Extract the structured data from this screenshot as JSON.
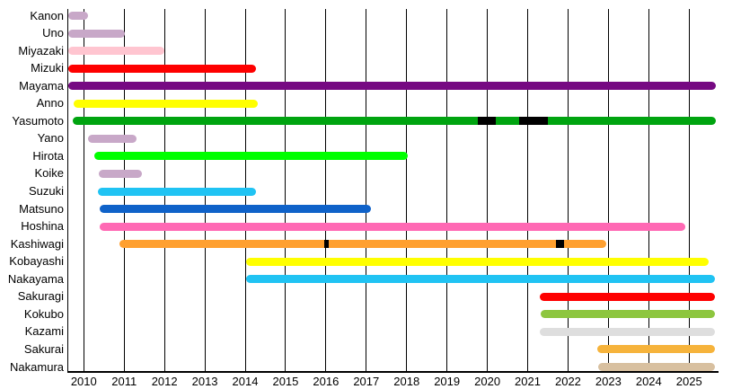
{
  "chart_data": {
    "type": "gantt",
    "title": "",
    "background": "#ffffff",
    "axis_color": "#000000",
    "break_color": "#000000",
    "grid_on": true,
    "x_axis": {
      "min": 2009.6,
      "max": 2025.72,
      "ticks": [
        2010,
        2011,
        2012,
        2013,
        2014,
        2015,
        2016,
        2017,
        2018,
        2019,
        2020,
        2021,
        2022,
        2023,
        2024,
        2025
      ]
    },
    "rows": [
      {
        "label": "Kanon",
        "color": "#c8a8c8",
        "start": 2009.62,
        "end": 2010.1,
        "breaks": []
      },
      {
        "label": "Uno",
        "color": "#c8a8c8",
        "start": 2009.62,
        "end": 2011.02,
        "breaks": []
      },
      {
        "label": "Miyazaki",
        "color": "#ffc5d0",
        "start": 2009.62,
        "end": 2012.0,
        "breaks": []
      },
      {
        "label": "Mizuki",
        "color": "#fe0000",
        "start": 2009.62,
        "end": 2014.27,
        "breaks": []
      },
      {
        "label": "Mayama",
        "color": "#760982",
        "start": 2009.62,
        "end": 2025.66,
        "breaks": []
      },
      {
        "label": "Anno",
        "color": "#ffff00",
        "start": 2009.74,
        "end": 2014.32,
        "breaks": []
      },
      {
        "label": "Yasumoto",
        "color": "#00a410",
        "start": 2009.73,
        "end": 2025.66,
        "breaks": [
          [
            2019.76,
            2020.2
          ],
          [
            2020.79,
            2021.5
          ]
        ]
      },
      {
        "label": "Yano",
        "color": "#c8a8c8",
        "start": 2010.11,
        "end": 2011.3,
        "breaks": []
      },
      {
        "label": "Hirota",
        "color": "#00ff00",
        "start": 2010.25,
        "end": 2018.03,
        "breaks": []
      },
      {
        "label": "Koike",
        "color": "#c8a8c8",
        "start": 2010.37,
        "end": 2011.45,
        "breaks": []
      },
      {
        "label": "Suzuki",
        "color": "#20c3f3",
        "start": 2010.36,
        "end": 2014.27,
        "breaks": []
      },
      {
        "label": "Matsuno",
        "color": "#0f62c9",
        "start": 2010.39,
        "end": 2017.11,
        "breaks": []
      },
      {
        "label": "Hoshina",
        "color": "#ff69b4",
        "start": 2010.39,
        "end": 2024.9,
        "breaks": []
      },
      {
        "label": "Kashiwagi",
        "color": "#ffa030",
        "start": 2010.89,
        "end": 2022.95,
        "breaks": [
          [
            2015.96,
            2016.06
          ],
          [
            2021.71,
            2021.91
          ]
        ]
      },
      {
        "label": "Kobayashi",
        "color": "#ffff00",
        "start": 2014.02,
        "end": 2025.48,
        "breaks": []
      },
      {
        "label": "Nakayama",
        "color": "#20c3f3",
        "start": 2014.02,
        "end": 2025.65,
        "breaks": []
      },
      {
        "label": "Sakuragi",
        "color": "#fe0000",
        "start": 2021.3,
        "end": 2025.65,
        "breaks": []
      },
      {
        "label": "Kokubo",
        "color": "#8dc63f",
        "start": 2021.32,
        "end": 2025.65,
        "breaks": []
      },
      {
        "label": "Kazami",
        "color": "#dedede",
        "start": 2021.3,
        "end": 2025.65,
        "breaks": []
      },
      {
        "label": "Sakurai",
        "color": "#f6b33b",
        "start": 2022.72,
        "end": 2025.65,
        "breaks": []
      },
      {
        "label": "Nakamura",
        "color": "#d8c0a0",
        "start": 2022.75,
        "end": 2025.65,
        "breaks": []
      }
    ]
  }
}
